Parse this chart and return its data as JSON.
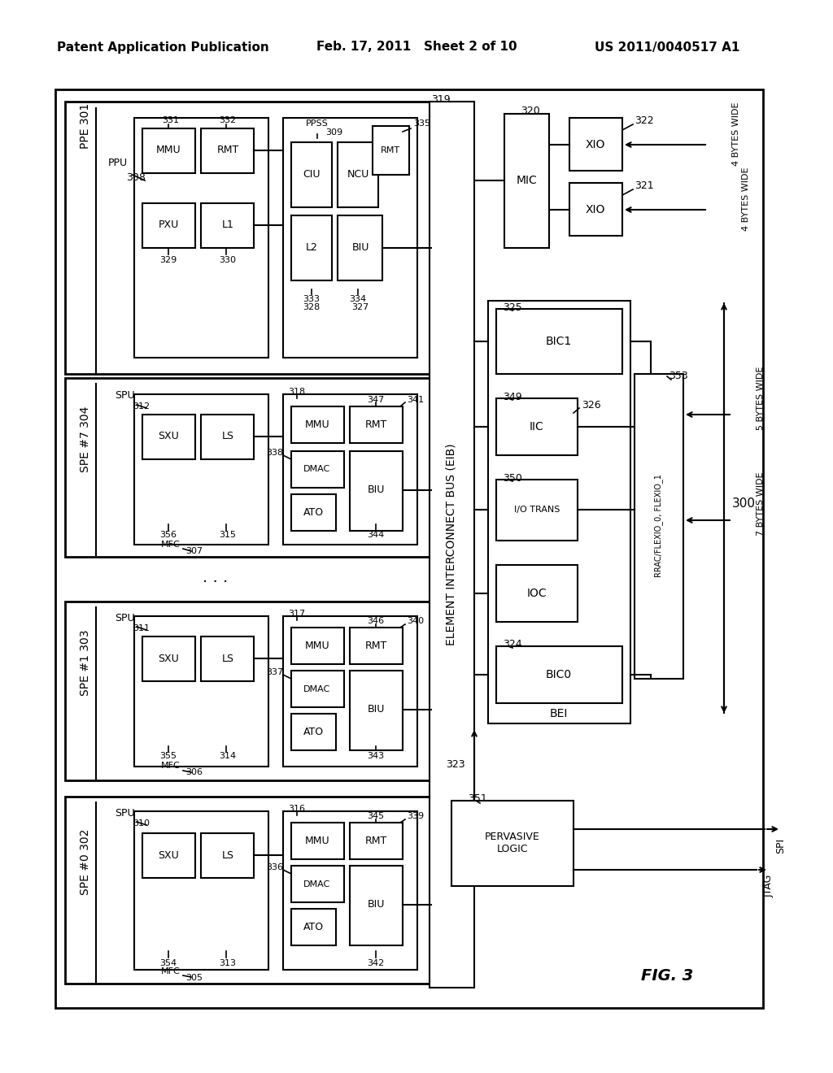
{
  "bg_color": "#ffffff",
  "header_left": "Patent Application Publication",
  "header_mid": "Feb. 17, 2011   Sheet 2 of 10",
  "header_right": "US 2011/0040517 A1",
  "fig_label": "FIG. 3"
}
